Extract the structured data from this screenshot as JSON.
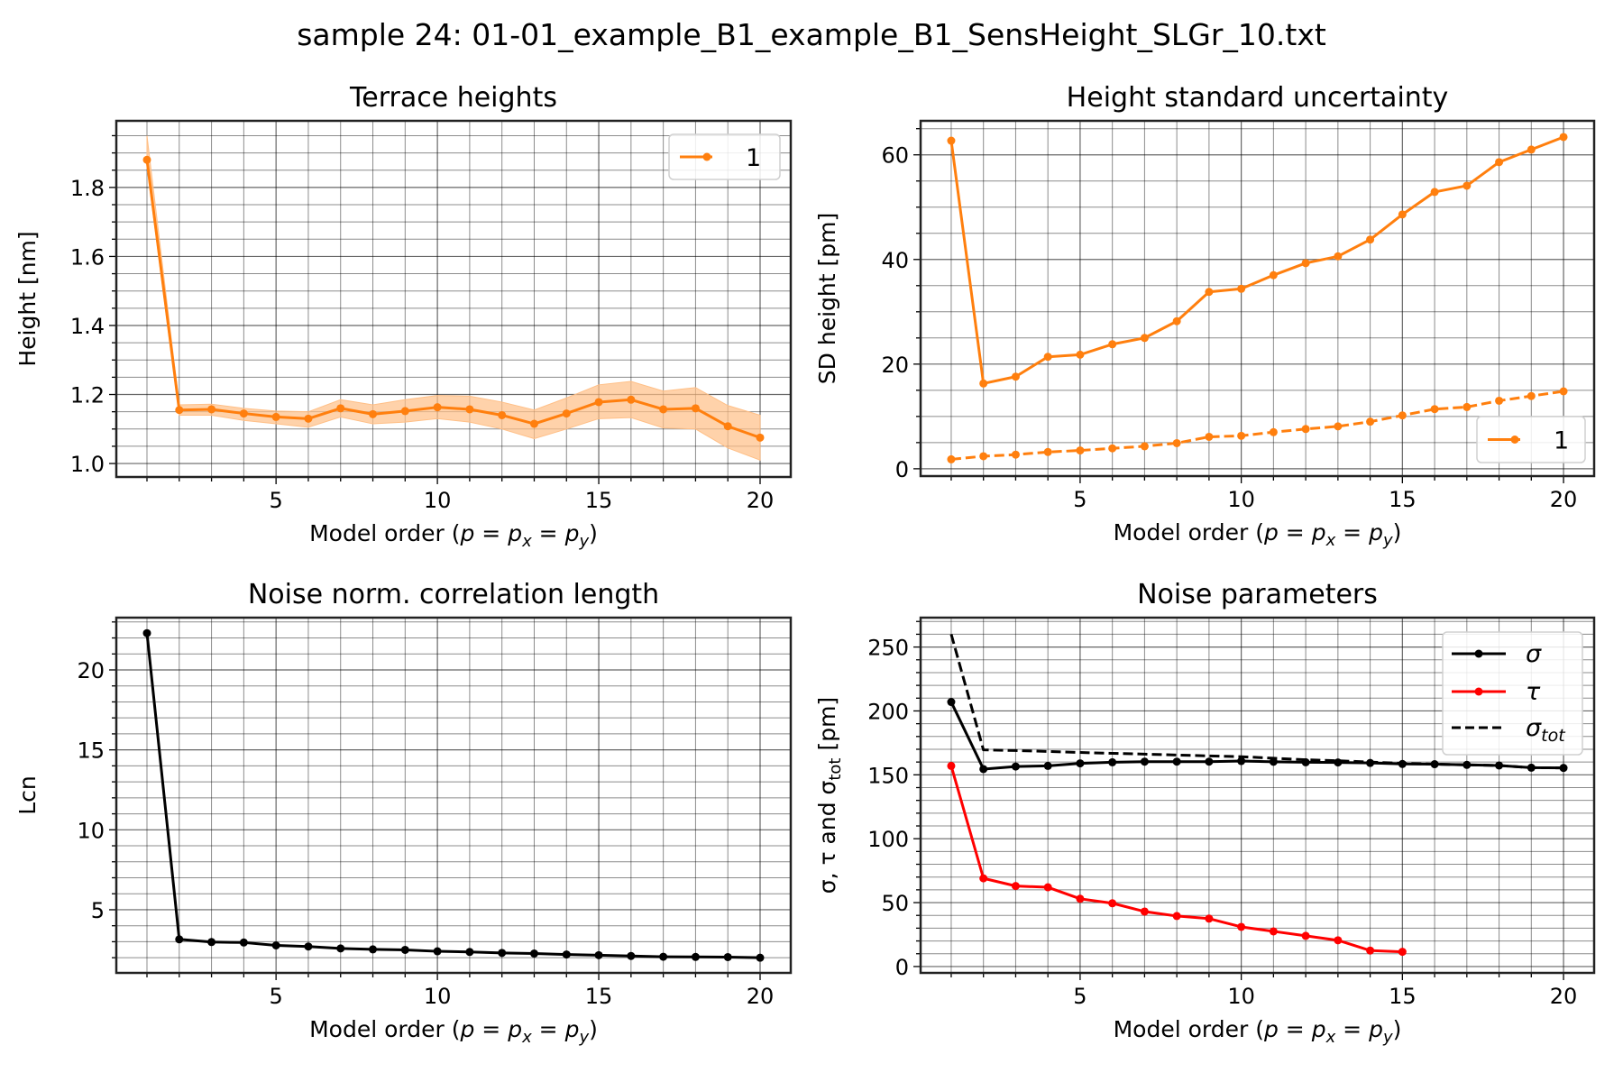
{
  "figure": {
    "suptitle": "sample 24: 01-01_example_B1_example_B1_SensHeight_SLGr_10.txt"
  },
  "colors": {
    "orange": "#ff7f0e",
    "band": "#ffbf86",
    "black": "#000000",
    "red": "#ff0000",
    "grid": "#000000"
  },
  "chart_data": [
    {
      "id": "terrace",
      "type": "line",
      "title": "Terrace heights",
      "xlabel": "Model order (",
      "ylabel": "Height [nm]",
      "xlim": [
        0.05,
        20.95
      ],
      "ylim": [
        0.961,
        1.993
      ],
      "xticks": [
        5,
        10,
        15,
        20
      ],
      "xtick_labels": [
        "5",
        "10",
        "15",
        "20"
      ],
      "yticks": [
        1.0,
        1.2,
        1.4,
        1.6,
        1.8
      ],
      "ytick_labels": [
        "1.0",
        "1.2",
        "1.4",
        "1.6",
        "1.8"
      ],
      "x_minor_step": 1,
      "y_minor_step": 0.05,
      "grid": true,
      "legend": {
        "position": "upper-right",
        "entries": [
          "1"
        ]
      },
      "x": [
        1,
        2,
        3,
        4,
        5,
        6,
        7,
        8,
        9,
        10,
        11,
        12,
        13,
        14,
        15,
        16,
        17,
        18,
        19,
        20
      ],
      "series": [
        {
          "name": "1",
          "style": "solid",
          "color": "#ff7f0e",
          "values": [
            1.88,
            1.155,
            1.157,
            1.145,
            1.135,
            1.13,
            1.16,
            1.143,
            1.152,
            1.163,
            1.157,
            1.14,
            1.115,
            1.145,
            1.178,
            1.185,
            1.157,
            1.16,
            1.108,
            1.075
          ],
          "band_upper": [
            1.95,
            1.17,
            1.172,
            1.16,
            1.152,
            1.15,
            1.185,
            1.17,
            1.185,
            1.197,
            1.195,
            1.178,
            1.155,
            1.19,
            1.228,
            1.238,
            1.21,
            1.22,
            1.168,
            1.14
          ],
          "band_lower": [
            1.86,
            1.14,
            1.14,
            1.125,
            1.115,
            1.105,
            1.135,
            1.115,
            1.12,
            1.13,
            1.12,
            1.1,
            1.072,
            1.1,
            1.13,
            1.133,
            1.103,
            1.1,
            1.045,
            1.01
          ]
        }
      ]
    },
    {
      "id": "sdheight",
      "type": "line",
      "title": "Height standard uncertainty",
      "xlabel": "Model order (",
      "ylabel": "SD height [pm]",
      "xlim": [
        0.05,
        20.95
      ],
      "ylim": [
        -1.4,
        66.5
      ],
      "xticks": [
        5,
        10,
        15,
        20
      ],
      "xtick_labels": [
        "5",
        "10",
        "15",
        "20"
      ],
      "yticks": [
        0,
        20,
        40,
        60
      ],
      "ytick_labels": [
        "0",
        "20",
        "40",
        "60"
      ],
      "x_minor_step": 1,
      "y_minor_step": 5,
      "grid": true,
      "legend": {
        "position": "lower-right",
        "entries": [
          "1"
        ]
      },
      "x": [
        1,
        2,
        3,
        4,
        5,
        6,
        7,
        8,
        9,
        10,
        11,
        12,
        13,
        14,
        15,
        16,
        17,
        18,
        19,
        20
      ],
      "series": [
        {
          "name": "1",
          "style": "solid",
          "color": "#ff7f0e",
          "values": [
            62.7,
            16.3,
            17.6,
            21.4,
            21.8,
            23.8,
            25.0,
            28.2,
            33.8,
            34.4,
            37.0,
            39.3,
            40.6,
            43.8,
            48.6,
            52.9,
            54.1,
            58.6,
            61.0,
            63.4
          ]
        },
        {
          "name": "1 (dashed)",
          "style": "dashed",
          "color": "#ff7f0e",
          "values": [
            1.8,
            2.4,
            2.7,
            3.2,
            3.5,
            3.9,
            4.3,
            4.9,
            6.1,
            6.3,
            7.0,
            7.6,
            8.1,
            9.0,
            10.2,
            11.4,
            11.8,
            13.0,
            13.9,
            14.8
          ]
        }
      ]
    },
    {
      "id": "lcn",
      "type": "line",
      "title": "Noise norm. correlation length",
      "xlabel": "Model order (",
      "ylabel": "Lcn",
      "xlim": [
        0.05,
        20.95
      ],
      "ylim": [
        1.05,
        23.27
      ],
      "xticks": [
        5,
        10,
        15,
        20
      ],
      "xtick_labels": [
        "5",
        "10",
        "15",
        "20"
      ],
      "yticks": [
        5,
        10,
        15,
        20
      ],
      "ytick_labels": [
        "5",
        "10",
        "15",
        "20"
      ],
      "x_minor_step": 1,
      "y_minor_step": 1,
      "grid": true,
      "legend": null,
      "x": [
        1,
        2,
        3,
        4,
        5,
        6,
        7,
        8,
        9,
        10,
        11,
        12,
        13,
        14,
        15,
        16,
        17,
        18,
        19,
        20
      ],
      "series": [
        {
          "name": "Lcn",
          "style": "solid",
          "color": "#000000",
          "values": [
            22.3,
            3.15,
            2.98,
            2.95,
            2.77,
            2.7,
            2.58,
            2.52,
            2.49,
            2.4,
            2.36,
            2.3,
            2.26,
            2.2,
            2.16,
            2.11,
            2.06,
            2.05,
            2.04,
            2.0
          ]
        }
      ]
    },
    {
      "id": "noise",
      "type": "line",
      "title": "Noise parameters",
      "xlabel": "Model order (",
      "ylabel": "σ, τ and σ",
      "ylabel_sub": "tot",
      "ylabel_unit": " [pm]",
      "xlim": [
        0.05,
        20.95
      ],
      "ylim": [
        -5,
        273
      ],
      "xticks": [
        5,
        10,
        15,
        20
      ],
      "xtick_labels": [
        "5",
        "10",
        "15",
        "20"
      ],
      "yticks": [
        0,
        50,
        100,
        150,
        200,
        250
      ],
      "ytick_labels": [
        "0",
        "50",
        "100",
        "150",
        "200",
        "250"
      ],
      "x_minor_step": 1,
      "y_minor_step": 10,
      "grid": true,
      "legend": {
        "position": "upper-right",
        "entries": [
          "σ",
          "τ",
          "σtot"
        ]
      },
      "series": [
        {
          "name": "σ",
          "style": "solid",
          "color": "#000000",
          "markers": true,
          "x": [
            1,
            2,
            3,
            4,
            5,
            6,
            7,
            8,
            9,
            10,
            11,
            12,
            13,
            14,
            15,
            16,
            17,
            18,
            19,
            20
          ],
          "values": [
            207,
            154.5,
            156.5,
            157,
            159,
            159.8,
            160.3,
            160.3,
            160.3,
            160.8,
            160.2,
            159.8,
            159.7,
            159.3,
            158.5,
            158.3,
            157.8,
            157.3,
            155.6,
            155.4
          ]
        },
        {
          "name": "τ",
          "style": "solid",
          "color": "#ff0000",
          "markers": true,
          "x": [
            1,
            2,
            3,
            4,
            5,
            6,
            7,
            8,
            9,
            10,
            11,
            12,
            13,
            14,
            15
          ],
          "values": [
            157,
            69,
            63,
            62,
            53,
            49.5,
            43,
            39.5,
            37.5,
            31,
            27.5,
            24,
            20.5,
            12.5,
            11.5
          ]
        },
        {
          "name": "σtot",
          "style": "dashed",
          "color": "#000000",
          "markers": false,
          "x": [
            1,
            2,
            3,
            4,
            5,
            6,
            7,
            8,
            9,
            10,
            11,
            12,
            13,
            14,
            15,
            16,
            17,
            18,
            19,
            20
          ],
          "values": [
            260,
            169.5,
            169,
            168.3,
            167.5,
            166.8,
            166.2,
            165.5,
            164.8,
            164.2,
            163,
            161.8,
            161,
            160,
            159,
            158.3,
            157.8,
            157.3,
            155.6,
            155.4
          ]
        }
      ]
    }
  ],
  "legend_labels": {
    "one": "1",
    "sigma": "σ",
    "tau": "τ",
    "sigma_tot_main": "σ",
    "sigma_tot_sub": "tot"
  },
  "xlabel_parts": {
    "prefix": "Model order (",
    "p": "p",
    "eq": " = ",
    "px": "p",
    "px_sub": "x",
    "py": "p",
    "py_sub": "y",
    "suffix": ")"
  }
}
